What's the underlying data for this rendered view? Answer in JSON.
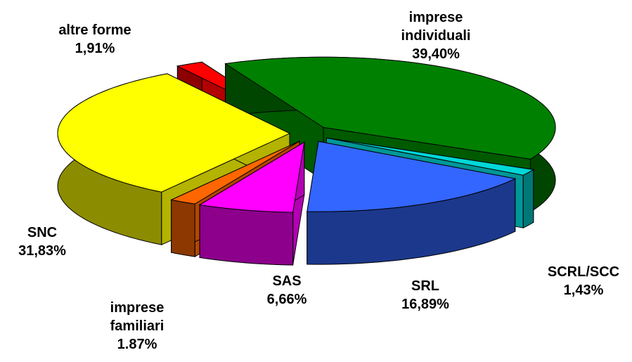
{
  "chart_data": {
    "type": "pie3d",
    "categories": [
      "imprese individuali",
      "SCRL/SCC",
      "SRL",
      "SAS",
      "imprese familiari",
      "SNC",
      "altre forme"
    ],
    "values": [
      39.4,
      1.43,
      16.89,
      6.66,
      1.87,
      31.83,
      1.91
    ],
    "value_labels": [
      "39,40%",
      "1,43%",
      "16,89%",
      "6,66%",
      "1.87%",
      "31,83%",
      "1,91%"
    ],
    "colors": [
      "#008000",
      "#00d8d8",
      "#3366ff",
      "#ff00ff",
      "#ff6600",
      "#ffff00",
      "#ff0000"
    ]
  }
}
